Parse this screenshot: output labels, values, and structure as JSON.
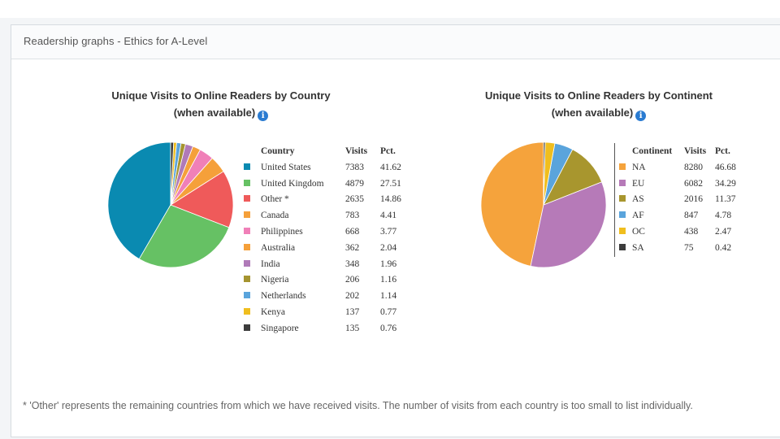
{
  "panel": {
    "title": "Readership graphs - Ethics for A-Level",
    "footnote": "* 'Other' represents the remaining countries from which we have received visits. The number of visits from each country is too small to list individually."
  },
  "info_icon_glyph": "i",
  "chart_data": [
    {
      "type": "pie",
      "title_line1": "Unique Visits to Online Readers by Country",
      "title_line2": "(when available)",
      "columns": [
        "Country",
        "Visits",
        "Pct."
      ],
      "slices": [
        {
          "label": "United States",
          "visits": "7383",
          "pct": "41.62",
          "value": 7383,
          "color": "#0a8ab1"
        },
        {
          "label": "United Kingdom",
          "visits": "4879",
          "pct": "27.51",
          "value": 4879,
          "color": "#66c164"
        },
        {
          "label": "Other *",
          "visits": "2635",
          "pct": "14.86",
          "value": 2635,
          "color": "#ef5a5a"
        },
        {
          "label": "Canada",
          "visits": "783",
          "pct": "4.41",
          "value": 783,
          "color": "#f5a03a"
        },
        {
          "label": "Philippines",
          "visits": "668",
          "pct": "3.77",
          "value": 668,
          "color": "#f080b8"
        },
        {
          "label": "Australia",
          "visits": "362",
          "pct": "2.04",
          "value": 362,
          "color": "#f5a03a"
        },
        {
          "label": "India",
          "visits": "348",
          "pct": "1.96",
          "value": 348,
          "color": "#b07ab8"
        },
        {
          "label": "Nigeria",
          "visits": "206",
          "pct": "1.16",
          "value": 206,
          "color": "#a59430"
        },
        {
          "label": "Netherlands",
          "visits": "202",
          "pct": "1.14",
          "value": 202,
          "color": "#5aa4dc"
        },
        {
          "label": "Kenya",
          "visits": "137",
          "pct": "0.77",
          "value": 137,
          "color": "#f0be1e"
        },
        {
          "label": "Singapore",
          "visits": "135",
          "pct": "0.76",
          "value": 135,
          "color": "#3c3c3c"
        }
      ]
    },
    {
      "type": "pie",
      "title_line1": "Unique Visits to Online Readers by Continent",
      "title_line2": "(when available)",
      "columns": [
        "Continent",
        "Visits",
        "Pct."
      ],
      "slices": [
        {
          "label": "NA",
          "visits": "8280",
          "pct": "46.68",
          "value": 8280,
          "color": "#f5a33c"
        },
        {
          "label": "EU",
          "visits": "6082",
          "pct": "34.29",
          "value": 6082,
          "color": "#b67ab8"
        },
        {
          "label": "AS",
          "visits": "2016",
          "pct": "11.37",
          "value": 2016,
          "color": "#a8962e"
        },
        {
          "label": "AF",
          "visits": "847",
          "pct": "4.78",
          "value": 847,
          "color": "#5aa4dc"
        },
        {
          "label": "OC",
          "visits": "438",
          "pct": "2.47",
          "value": 438,
          "color": "#f0be1e"
        },
        {
          "label": "SA",
          "visits": "75",
          "pct": "0.42",
          "value": 75,
          "color": "#3c3c3c"
        }
      ]
    }
  ]
}
